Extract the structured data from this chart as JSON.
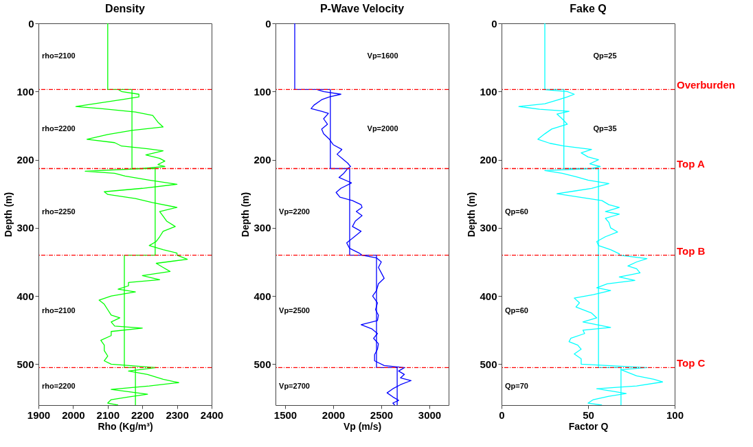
{
  "chart_data": [
    {
      "type": "line",
      "title": "Density",
      "xlabel": "Rho (Kg/m³)",
      "ylabel": "Depth (m)",
      "xlim": [
        1900,
        2400
      ],
      "xticks": [
        1900,
        2000,
        2100,
        2200,
        2300,
        2400
      ],
      "ylim": [
        560,
        0
      ],
      "yticks": [
        0,
        100,
        200,
        300,
        400,
        500
      ],
      "grid": false,
      "series": [
        {
          "color": "#00ff00",
          "x": [
            2100,
            2100,
            2170,
            2170,
            2237,
            2237,
            2148,
            2148,
            2180,
            2180
          ],
          "values": [
            0,
            97,
            97,
            213,
            213,
            340,
            340,
            505,
            505,
            560
          ]
        },
        {
          "color": "#00ff00",
          "x": [
            2130,
            2140,
            2190,
            2190,
            2140,
            2008,
            2080,
            2180,
            2230,
            2245,
            2260,
            2170,
            2100,
            2040,
            2120,
            2140,
            2215,
            2260,
            2210,
            2250,
            2265,
            2245,
            2265,
            2200,
            2035,
            2120,
            2150,
            2220,
            2300,
            2200,
            2090,
            2100,
            2180,
            2230,
            2300,
            2250,
            2260,
            2270,
            2295,
            2260,
            2250,
            2240,
            2220,
            2260,
            2300,
            2300,
            2330,
            2240,
            2260,
            2280,
            2200,
            2250,
            2160,
            2160,
            2130,
            2180,
            2110,
            2075,
            2090,
            2100,
            2110,
            2135,
            2110,
            2120,
            2200,
            2110,
            2110,
            2080,
            2090,
            2090,
            2100,
            2090,
            2110,
            2240,
            2160,
            2215,
            2260,
            2305,
            2220,
            2110,
            2170,
            2215,
            2160,
            2110,
            2100,
            2130
          ],
          "values": [
            97,
            100,
            104,
            108,
            112,
            122,
            125,
            130,
            135,
            145,
            152,
            157,
            163,
            170,
            175,
            180,
            184,
            187,
            193,
            198,
            202,
            207,
            210,
            213,
            217,
            220,
            224,
            230,
            236,
            242,
            247,
            251,
            257,
            263,
            270,
            276,
            283,
            290,
            298,
            305,
            313,
            320,
            326,
            332,
            337,
            340,
            346,
            352,
            358,
            364,
            370,
            376,
            380,
            385,
            390,
            394,
            400,
            406,
            412,
            420,
            428,
            432,
            438,
            444,
            447,
            452,
            458,
            465,
            472,
            480,
            488,
            495,
            500,
            505,
            510,
            515,
            522,
            527,
            532,
            537,
            541,
            544,
            548,
            552,
            557,
            560
          ]
        }
      ],
      "ref_lines": [
        {
          "axis": "y",
          "value": 97,
          "color": "#ff0000",
          "line_style": "dashed"
        },
        {
          "axis": "y",
          "value": 213,
          "color": "#ff0000",
          "line_style": "dashed"
        },
        {
          "axis": "y",
          "value": 340,
          "color": "#ff0000",
          "line_style": "dashed"
        },
        {
          "axis": "y",
          "value": 505,
          "color": "#ff0000",
          "line_style": "dashed"
        }
      ],
      "annotations": [
        "rho=2100",
        "rho=2200",
        "rho=2250",
        "rho=2100",
        "rho=2200"
      ],
      "legend": false
    },
    {
      "type": "line",
      "title": "P-Wave Velocity",
      "xlabel": "Vp (m/s)",
      "ylabel": "Depth (m)",
      "xlim": [
        1400,
        3200
      ],
      "xticks": [
        1500,
        2000,
        2500,
        3000
      ],
      "ylim": [
        560,
        0
      ],
      "yticks": [
        0,
        100,
        200,
        300,
        400,
        500
      ],
      "grid": false,
      "series": [
        {
          "color": "#0000ff",
          "x": [
            1600,
            1600,
            1970,
            1970,
            2171,
            2171,
            2450,
            2450,
            2665,
            2665
          ],
          "values": [
            0,
            97,
            97,
            213,
            213,
            340,
            340,
            505,
            505,
            560
          ]
        },
        {
          "color": "#0000ff",
          "x": [
            1830,
            1900,
            2080,
            1960,
            1880,
            1800,
            1770,
            1880,
            1950,
            1900,
            1940,
            1880,
            1900,
            1960,
            2000,
            2090,
            2040,
            2090,
            2150,
            2180,
            2150,
            2110,
            2060,
            2190,
            2080,
            2030,
            2070,
            2200,
            2290,
            2300,
            2240,
            2300,
            2230,
            2200,
            2290,
            2220,
            2140,
            2170,
            2270,
            2300,
            2450,
            2500,
            2470,
            2500,
            2530,
            2470,
            2450,
            2410,
            2460,
            2440,
            2470,
            2460,
            2290,
            2400,
            2460,
            2420,
            2470,
            2460,
            2430,
            2430,
            2530,
            2740,
            2680,
            2740,
            2700,
            2810,
            2700,
            2620,
            2560,
            2620,
            2680,
            2620,
            2640
          ],
          "values": [
            97,
            100,
            104,
            108,
            112,
            120,
            125,
            129,
            132,
            140,
            148,
            155,
            162,
            170,
            178,
            185,
            192,
            198,
            205,
            210,
            213,
            220,
            226,
            234,
            242,
            248,
            255,
            260,
            266,
            270,
            276,
            282,
            290,
            298,
            305,
            313,
            322,
            330,
            337,
            340,
            344,
            350,
            358,
            366,
            374,
            382,
            392,
            400,
            410,
            420,
            428,
            436,
            442,
            448,
            455,
            462,
            470,
            478,
            486,
            495,
            502,
            505,
            510,
            515,
            520,
            524,
            530,
            536,
            542,
            548,
            553,
            557,
            560
          ]
        }
      ],
      "ref_lines": [
        {
          "axis": "y",
          "value": 97,
          "color": "#ff0000",
          "line_style": "dashed"
        },
        {
          "axis": "y",
          "value": 213,
          "color": "#ff0000",
          "line_style": "dashed"
        },
        {
          "axis": "y",
          "value": 340,
          "color": "#ff0000",
          "line_style": "dashed"
        },
        {
          "axis": "y",
          "value": 505,
          "color": "#ff0000",
          "line_style": "dashed"
        }
      ],
      "annotations": [
        "Vp=1600",
        "Vp=2000",
        "Vp=2200",
        "Vp=2500",
        "Vp=2700"
      ],
      "legend": false
    },
    {
      "type": "line",
      "title": "Fake Q",
      "xlabel": "Factor Q",
      "ylabel": "Depth (m)",
      "xlim": [
        0,
        100
      ],
      "xticks": [
        0,
        50,
        100
      ],
      "ylim": [
        560,
        0
      ],
      "yticks": [
        0,
        100,
        200,
        300,
        400,
        500
      ],
      "grid": false,
      "series": [
        {
          "color": "#00ffff",
          "x": [
            25,
            25,
            36,
            36,
            56,
            56,
            56,
            56,
            69,
            69
          ],
          "values": [
            0,
            97,
            97,
            213,
            213,
            340,
            340,
            505,
            505,
            560
          ]
        },
        {
          "color": "#00ffff",
          "x": [
            24,
            38,
            42,
            38,
            33,
            25,
            10,
            22,
            39,
            32,
            35,
            38,
            29,
            25,
            21,
            28,
            36,
            52,
            46,
            50,
            56,
            51,
            57,
            52,
            25,
            35,
            43,
            50,
            62,
            52,
            42,
            32,
            45,
            58,
            62,
            68,
            60,
            68,
            60,
            62,
            63,
            67,
            60,
            55,
            56,
            63,
            68,
            68,
            84,
            78,
            73,
            78,
            80,
            68,
            77,
            61,
            55,
            63,
            53,
            42,
            45,
            43,
            52,
            55,
            47,
            63,
            47,
            48,
            40,
            39,
            44,
            46,
            42,
            46,
            46,
            84,
            69,
            73,
            78,
            88,
            93,
            78,
            55,
            65,
            72,
            62,
            53,
            50,
            58
          ],
          "values": [
            97,
            100,
            104,
            108,
            112,
            118,
            122,
            126,
            129,
            133,
            140,
            148,
            155,
            162,
            170,
            176,
            180,
            185,
            190,
            196,
            200,
            206,
            210,
            213,
            216,
            220,
            225,
            230,
            235,
            242,
            246,
            250,
            255,
            260,
            266,
            270,
            276,
            280,
            286,
            292,
            300,
            306,
            313,
            320,
            326,
            332,
            338,
            340,
            345,
            350,
            356,
            360,
            366,
            372,
            377,
            382,
            388,
            392,
            398,
            403,
            410,
            416,
            425,
            432,
            438,
            446,
            450,
            455,
            462,
            467,
            472,
            478,
            485,
            492,
            500,
            505,
            508,
            512,
            517,
            522,
            526,
            532,
            536,
            540,
            543,
            547,
            552,
            557,
            560
          ]
        }
      ],
      "ref_lines": [
        {
          "axis": "y",
          "value": 97,
          "label": "Overburden",
          "color": "#ff0000",
          "line_style": "dashed"
        },
        {
          "axis": "y",
          "value": 213,
          "label": "Top A",
          "color": "#ff0000",
          "line_style": "dashed"
        },
        {
          "axis": "y",
          "value": 340,
          "label": "Top B",
          "color": "#ff0000",
          "line_style": "dashed"
        },
        {
          "axis": "y",
          "value": 505,
          "label": "Top C",
          "color": "#ff0000",
          "line_style": "dashed"
        }
      ],
      "annotations": [
        "Qp=25",
        "Qp=35",
        "Qp=60",
        "Qp=60",
        "Qp=70"
      ],
      "legend": false
    }
  ]
}
